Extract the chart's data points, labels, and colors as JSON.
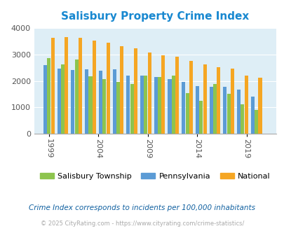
{
  "title": "Salisbury Property Crime Index",
  "title_color": "#1888d0",
  "subtitle": "Crime Index corresponds to incidents per 100,000 inhabitants",
  "footer": "© 2025 CityRating.com - https://www.cityrating.com/crime-statistics/",
  "color_salisbury": "#8dc44e",
  "color_pennsylvania": "#5b9bd5",
  "color_national": "#f5a623",
  "bg_color": "#deeef6",
  "ylim": [
    0,
    4000
  ],
  "yticks": [
    0,
    1000,
    2000,
    3000,
    4000
  ],
  "xtick_labels": [
    "1999",
    "2004",
    "2009",
    "2014",
    "2019"
  ],
  "xtick_positions": [
    1999,
    2004,
    2009,
    2014,
    2019
  ],
  "sal": [
    2850,
    2620,
    2800,
    2180,
    2070,
    1950,
    1870,
    2200,
    2140,
    2200,
    1530,
    1260,
    1880,
    1520,
    1110,
    900
  ],
  "pa": [
    2580,
    2460,
    2420,
    2440,
    2380,
    2430,
    2210,
    2200,
    2150,
    2070,
    1960,
    1810,
    1780,
    1770,
    1660,
    1420
  ],
  "nat": [
    3620,
    3640,
    3610,
    3520,
    3440,
    3300,
    3230,
    3060,
    2960,
    2910,
    2740,
    2620,
    2520,
    2470,
    2200,
    2120
  ]
}
